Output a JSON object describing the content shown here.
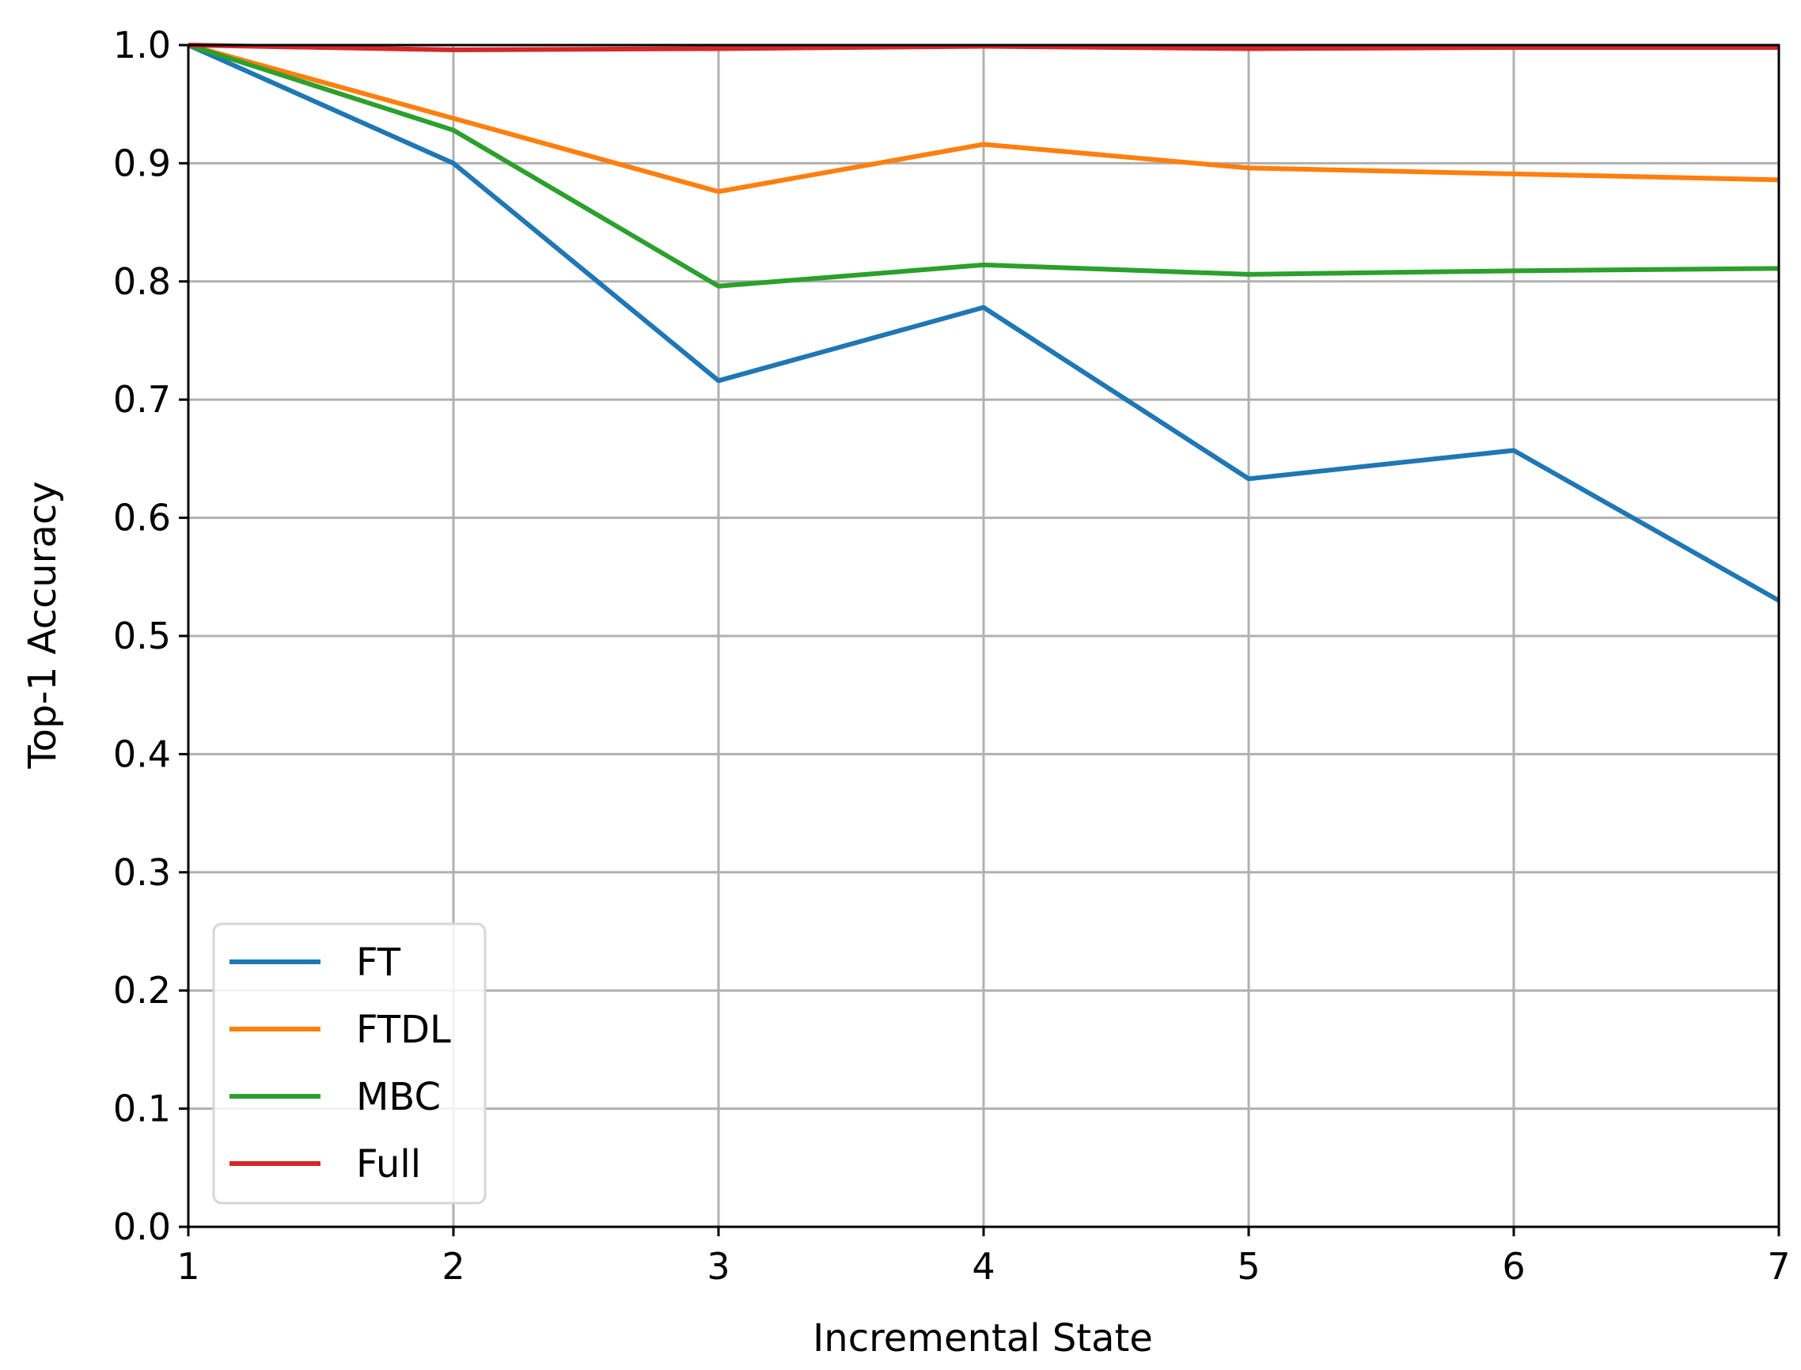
{
  "chart_data": {
    "type": "line",
    "title": "",
    "xlabel": "Incremental State",
    "ylabel": "Top-1 Accuracy",
    "x": [
      1,
      2,
      3,
      4,
      5,
      6,
      7
    ],
    "xlim": [
      1,
      7
    ],
    "ylim": [
      0.0,
      1.0
    ],
    "x_ticks": [
      "1",
      "2",
      "3",
      "4",
      "5",
      "6",
      "7"
    ],
    "y_ticks": [
      "0.0",
      "0.1",
      "0.2",
      "0.3",
      "0.4",
      "0.5",
      "0.6",
      "0.7",
      "0.8",
      "0.9",
      "1.0"
    ],
    "grid": true,
    "legend_position": "lower-left",
    "series": [
      {
        "name": "FT",
        "color": "#1f77b4",
        "values": [
          1.0,
          0.9,
          0.716,
          0.778,
          0.633,
          0.657,
          0.53
        ]
      },
      {
        "name": "FTDL",
        "color": "#ff7f0e",
        "values": [
          1.0,
          0.938,
          0.876,
          0.916,
          0.896,
          0.891,
          0.886
        ]
      },
      {
        "name": "MBC",
        "color": "#2ca02c",
        "values": [
          1.0,
          0.928,
          0.796,
          0.814,
          0.806,
          0.809,
          0.811
        ]
      },
      {
        "name": "Full",
        "color": "#d62728",
        "values": [
          1.0,
          0.996,
          0.997,
          0.999,
          0.997,
          0.998,
          0.998
        ]
      }
    ]
  }
}
